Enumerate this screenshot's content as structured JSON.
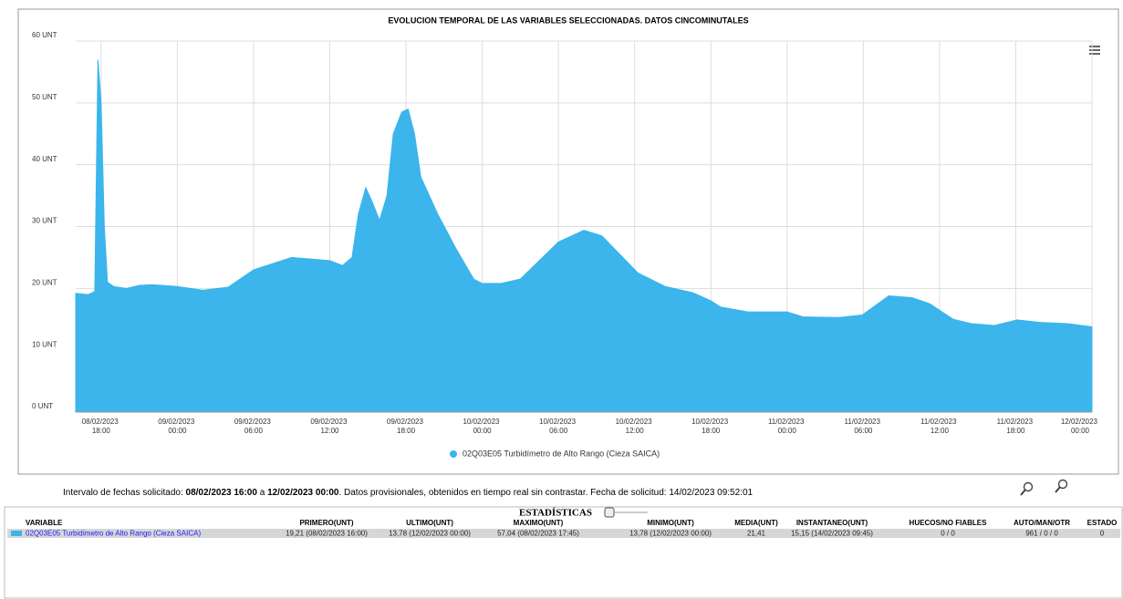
{
  "chart_data": {
    "type": "area",
    "title": "EVOLUCION TEMPORAL DE LAS VARIABLES SELECCIONADAS. DATOS CINCOMINUTALES",
    "x": [
      "2023-02-08 16:00",
      "2023-02-08 17:00",
      "2023-02-08 17:30",
      "2023-02-08 17:45",
      "2023-02-08 18:00",
      "2023-02-08 18:15",
      "2023-02-08 18:30",
      "2023-02-08 19:00",
      "2023-02-08 20:00",
      "2023-02-08 21:00",
      "2023-02-08 22:00",
      "2023-02-09 00:00",
      "2023-02-09 02:00",
      "2023-02-09 04:00",
      "2023-02-09 06:00",
      "2023-02-09 09:00",
      "2023-02-09 12:00",
      "2023-02-09 13:00",
      "2023-02-09 13:45",
      "2023-02-09 14:15",
      "2023-02-09 14:50",
      "2023-02-09 15:20",
      "2023-02-09 15:55",
      "2023-02-09 16:30",
      "2023-02-09 17:00",
      "2023-02-09 17:40",
      "2023-02-09 18:10",
      "2023-02-09 18:40",
      "2023-02-09 19:10",
      "2023-02-09 20:30",
      "2023-02-09 21:55",
      "2023-02-09 23:20",
      "2023-02-10 00:00",
      "2023-02-10 01:30",
      "2023-02-10 03:00",
      "2023-02-10 04:45",
      "2023-02-10 06:00",
      "2023-02-10 08:00",
      "2023-02-10 09:25",
      "2023-02-10 10:50",
      "2023-02-10 12:15",
      "2023-02-10 14:25",
      "2023-02-10 16:35",
      "2023-02-10 18:00",
      "2023-02-10 18:45",
      "2023-02-10 20:55",
      "2023-02-11 00:00",
      "2023-02-11 01:15",
      "2023-02-11 04:05",
      "2023-02-11 05:55",
      "2023-02-11 08:00",
      "2023-02-11 09:50",
      "2023-02-11 11:15",
      "2023-02-11 13:05",
      "2023-02-11 14:30",
      "2023-02-11 16:20",
      "2023-02-11 18:05",
      "2023-02-11 19:55",
      "2023-02-11 22:05",
      "2023-02-12 00:00"
    ],
    "series": [
      {
        "name": "02Q03E05 Turbidímetro de Alto Rango (Cieza SAICA)",
        "color": "#3bb5ec",
        "values": [
          19.2,
          19.0,
          19.5,
          57.0,
          50,
          30,
          21,
          20.3,
          20.0,
          20.5,
          20.6,
          20.3,
          19.7,
          20.2,
          23,
          25,
          24.5,
          23.7,
          25,
          32,
          36.3,
          34,
          31,
          35,
          45,
          48.5,
          49,
          45,
          38,
          32,
          26.5,
          21.5,
          20.8,
          20.8,
          21.5,
          25,
          27.5,
          29.4,
          28.5,
          25.5,
          22.5,
          20.3,
          19.3,
          18,
          17,
          16.2,
          16.2,
          15.4,
          15.3,
          15.7,
          18.8,
          18.5,
          17.5,
          15,
          14.3,
          14,
          14.9,
          14.5,
          14.3,
          13.8
        ]
      }
    ],
    "xlim": [
      "2023-02-08 16:00",
      "2023-02-12 00:00"
    ],
    "xticks": [
      {
        "value": "2023-02-08 18:00",
        "label": "08/02/2023 18:00"
      },
      {
        "value": "2023-02-09 00:00",
        "label": "09/02/2023 00:00"
      },
      {
        "value": "2023-02-09 06:00",
        "label": "09/02/2023 06:00"
      },
      {
        "value": "2023-02-09 12:00",
        "label": "09/02/2023 12:00"
      },
      {
        "value": "2023-02-09 18:00",
        "label": "09/02/2023 18:00"
      },
      {
        "value": "2023-02-10 00:00",
        "label": "10/02/2023 00:00"
      },
      {
        "value": "2023-02-10 06:00",
        "label": "10/02/2023 06:00"
      },
      {
        "value": "2023-02-10 12:00",
        "label": "10/02/2023 12:00"
      },
      {
        "value": "2023-02-10 18:00",
        "label": "10/02/2023 18:00"
      },
      {
        "value": "2023-02-11 00:00",
        "label": "11/02/2023 00:00"
      },
      {
        "value": "2023-02-11 06:00",
        "label": "11/02/2023 06:00"
      },
      {
        "value": "2023-02-11 12:00",
        "label": "11/02/2023 12:00"
      },
      {
        "value": "2023-02-11 18:00",
        "label": "11/02/2023 18:00"
      },
      {
        "value": "2023-02-12 00:00",
        "label": "12/02/2023 00:00"
      }
    ],
    "ylim": [
      0,
      60
    ],
    "yticks": [
      {
        "value": 0,
        "label": "0 UNT"
      },
      {
        "value": 10,
        "label": "10 UNT"
      },
      {
        "value": 20,
        "label": "20 UNT"
      },
      {
        "value": 30,
        "label": "30 UNT"
      },
      {
        "value": 40,
        "label": "40 UNT"
      },
      {
        "value": 50,
        "label": "50 UNT"
      },
      {
        "value": 60,
        "label": "60 UNT"
      }
    ],
    "grid": true,
    "legend": "bottom"
  },
  "footer": {
    "parts": [
      "Intervalo de fechas solicitado: ",
      "08/02/2023 16:00",
      " a ",
      "12/02/2023 00:00",
      ". Datos provisionales, obtenidos en tiempo real sin contrastar. Fecha de solicitud: 14/02/2023 09:52:01"
    ]
  },
  "stats": {
    "title": "ESTADÍSTICAS",
    "headers": [
      "VARIABLE",
      "PRIMERO(UNT)",
      "ULTIMO(UNT)",
      "MAXIMO(UNT)",
      "MINIMO(UNT)",
      "MEDIA(UNT)",
      "INSTANTANEO(UNT)",
      "HUECOS/NO FIABLES",
      "AUTO/MAN/OTR",
      "ESTADO"
    ],
    "rows": [
      [
        "02Q03E05 Turbidímetro de Alto Rango (Cieza SAICA)",
        "19,21 (08/02/2023 16:00)",
        "13,78 (12/02/2023 00:00)",
        "57,04 (08/02/2023 17:45)",
        "13,78 (12/02/2023 00:00)",
        "21,41",
        "15,15 (14/02/2023 09:45)",
        "0 / 0",
        "961 / 0 / 0",
        "0"
      ]
    ]
  }
}
